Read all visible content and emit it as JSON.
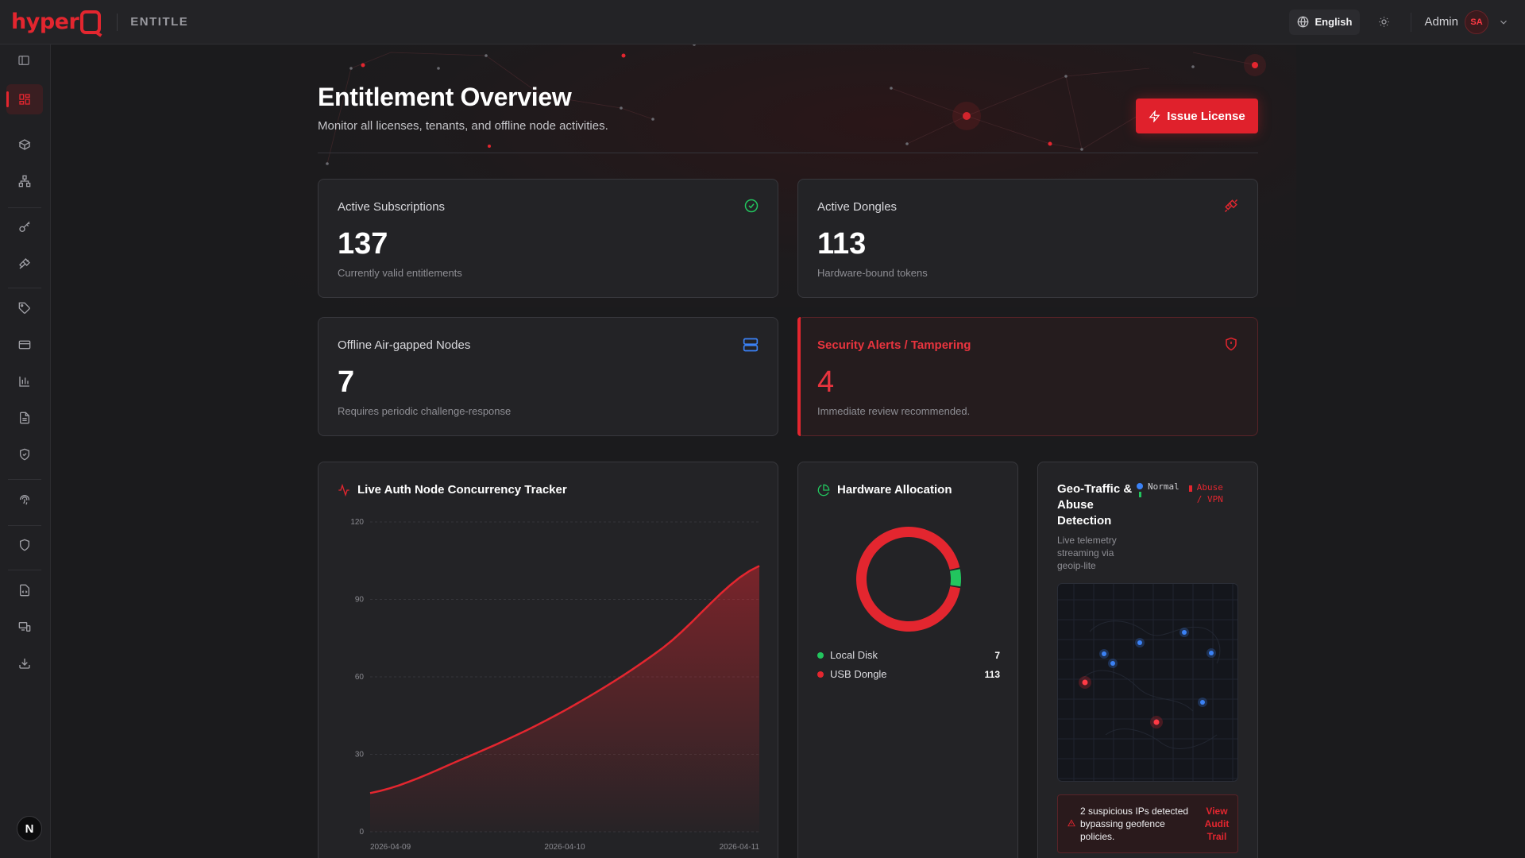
{
  "app": {
    "logo": "hyper",
    "brand": "ENTITLE"
  },
  "topbar": {
    "language": "English",
    "user_name": "Admin",
    "user_initials": "SA"
  },
  "sidebar": {
    "items": [
      "dashboard-icon",
      "package-icon",
      "network-icon",
      "key-icon",
      "plug-icon",
      "tag-icon",
      "card-icon",
      "bar-chart-icon",
      "document-icon",
      "shield-check-icon",
      "fingerprint-icon",
      "shield-icon",
      "code-file-icon",
      "devices-icon",
      "download-icon"
    ],
    "footer_badge": "N"
  },
  "header": {
    "title": "Entitlement Overview",
    "subtitle": "Monitor all licenses, tenants, and offline node activities.",
    "issue_button": "Issue License"
  },
  "stats": [
    {
      "label": "Active Subscriptions",
      "value": "137",
      "desc": "Currently valid entitlements",
      "icon": "check-circle-icon",
      "color": "#22c55e"
    },
    {
      "label": "Active Dongles",
      "value": "113",
      "desc": "Hardware-bound tokens",
      "icon": "plug-icon",
      "color": "#e3262f"
    },
    {
      "label": "Offline Air-gapped Nodes",
      "value": "7",
      "desc": "Requires periodic challenge-response",
      "icon": "server-icon",
      "color": "#3b82f6"
    },
    {
      "label": "Security Alerts / Tampering",
      "value": "4",
      "desc": "Immediate review recommended.",
      "icon": "shield-alert-icon",
      "color": "#e3262f"
    }
  ],
  "concurrency": {
    "title": "Live Auth Node Concurrency Tracker",
    "chart_data": {
      "type": "area",
      "x": [
        "2026-04-09",
        "2026-04-10",
        "2026-04-11"
      ],
      "x_ticks": [
        "2026-04-09",
        "2026-04-10",
        "2026-04-11"
      ],
      "points": [
        [
          0,
          15
        ],
        [
          0.25,
          29
        ],
        [
          0.5,
          47
        ],
        [
          0.75,
          71
        ],
        [
          1.0,
          103
        ]
      ],
      "ylim": [
        0,
        120
      ],
      "y_ticks": [
        0,
        30,
        60,
        90,
        120
      ],
      "grid": true,
      "color": "#e3262f"
    }
  },
  "hardware": {
    "title": "Hardware Allocation",
    "chart_data": {
      "type": "pie",
      "slices": [
        {
          "name": "Local Disk",
          "value": 7,
          "color": "#22c55e"
        },
        {
          "name": "USB Dongle",
          "value": 113,
          "color": "#e3262f"
        }
      ]
    }
  },
  "geo": {
    "title": "Geo-Traffic & Abuse Detection",
    "subtitle": "Live telemetry streaming via geoip-lite",
    "legend_normal": "Normal",
    "legend_abuse": "Abuse / VPN",
    "alert_text": "2 suspicious IPs detected bypassing geofence policies.",
    "alert_link": "View Audit Trail"
  }
}
